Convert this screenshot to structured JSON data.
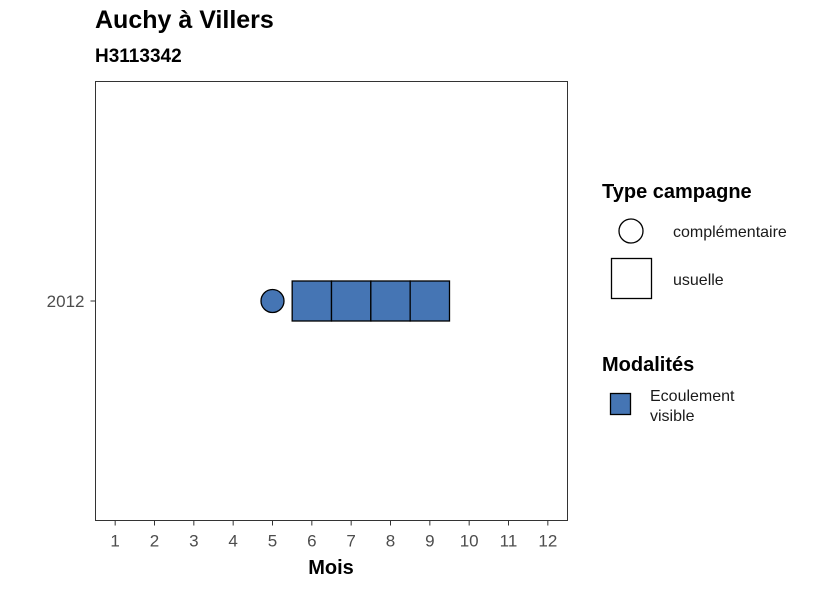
{
  "chart_data": {
    "type": "scatter",
    "title": "Auchy à Villers",
    "subtitle": "H3113342",
    "xlabel": "Mois",
    "ylabel": "",
    "x_ticks": [
      "1",
      "2",
      "3",
      "4",
      "5",
      "6",
      "7",
      "8",
      "9",
      "10",
      "11",
      "12"
    ],
    "xlim": [
      0.5,
      12.5
    ],
    "y_categories": [
      "2012"
    ],
    "grid": false,
    "points": [
      {
        "month": 5,
        "year": "2012",
        "campagne": "complémentaire",
        "modalite": "Ecoulement visible"
      },
      {
        "month": 6,
        "year": "2012",
        "campagne": "usuelle",
        "modalite": "Ecoulement visible"
      },
      {
        "month": 7,
        "year": "2012",
        "campagne": "usuelle",
        "modalite": "Ecoulement visible"
      },
      {
        "month": 8,
        "year": "2012",
        "campagne": "usuelle",
        "modalite": "Ecoulement visible"
      },
      {
        "month": 9,
        "year": "2012",
        "campagne": "usuelle",
        "modalite": "Ecoulement visible"
      }
    ],
    "legend": {
      "position": "right",
      "shape_title": "Type campagne",
      "shape_entries": [
        {
          "label": "complémentaire",
          "shape": "circle"
        },
        {
          "label": "usuelle",
          "shape": "square"
        }
      ],
      "color_title": "Modalités",
      "color_entries": [
        {
          "label_line1": "Ecoulement",
          "label_line2": "visible",
          "color": "#4575b4"
        }
      ]
    },
    "colors": {
      "ecoulement_visible": "#4575b4"
    }
  }
}
